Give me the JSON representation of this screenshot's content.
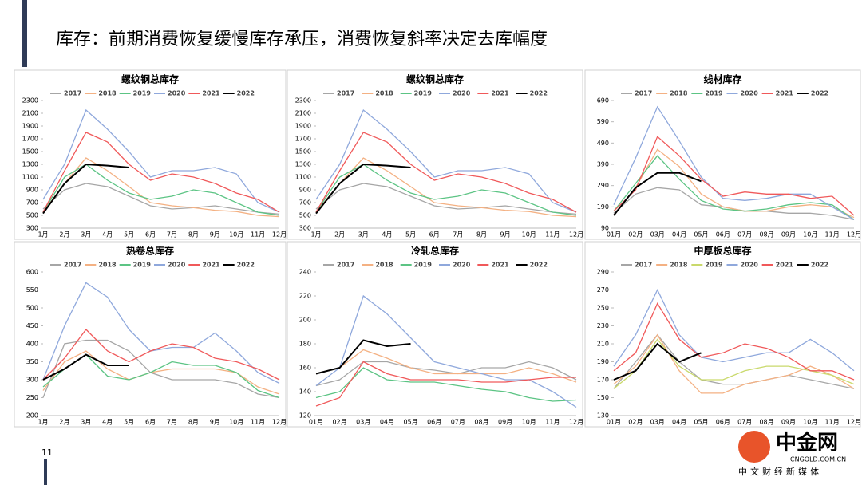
{
  "header": {
    "title": "库存：前期消费恢复缓慢库存承压，消费恢复斜率决定去库幅度"
  },
  "page_number": "11",
  "watermark": {
    "brand": "中金网",
    "site": "CNGOLD.COM.CN",
    "slogan": "中文财经新媒体"
  },
  "chart_data": [
    {
      "type": "line",
      "title": "螺纹钢总库存",
      "categories": [
        "1月",
        "2月",
        "3月",
        "4月",
        "5月",
        "6月",
        "7月",
        "8月",
        "9月",
        "10月",
        "11月",
        "12月"
      ],
      "ylim": [
        300,
        2300
      ],
      "yticks": [
        300,
        500,
        700,
        900,
        1100,
        1300,
        1500,
        1700,
        1900,
        2100,
        2300
      ],
      "series": [
        {
          "name": "2017",
          "color": "#a6a6a6",
          "values": [
            600,
            900,
            1000,
            950,
            800,
            650,
            600,
            620,
            650,
            600,
            550,
            520
          ]
        },
        {
          "name": "2018",
          "color": "#f4b183",
          "values": [
            550,
            1000,
            1400,
            1200,
            950,
            700,
            650,
            620,
            580,
            560,
            500,
            480
          ]
        },
        {
          "name": "2019",
          "color": "#5cc484",
          "values": [
            550,
            1100,
            1300,
            1050,
            850,
            750,
            800,
            900,
            850,
            700,
            550,
            500
          ]
        },
        {
          "name": "2020",
          "color": "#8fa8dc",
          "values": [
            750,
            1300,
            2150,
            1850,
            1500,
            1100,
            1200,
            1200,
            1250,
            1150,
            700,
            550
          ]
        },
        {
          "name": "2021",
          "color": "#f0595a",
          "values": [
            550,
            1200,
            1800,
            1650,
            1300,
            1050,
            1150,
            1100,
            1000,
            850,
            750,
            550
          ]
        },
        {
          "name": "2022",
          "color": "#000000",
          "values": [
            530,
            1000,
            1300,
            1280,
            1250,
            null,
            null,
            null,
            null,
            null,
            null,
            null
          ]
        }
      ]
    },
    {
      "type": "line",
      "title": "螺纹钢总库存",
      "categories": [
        "1月",
        "2月",
        "3月",
        "4月",
        "5月",
        "6月",
        "7月",
        "8月",
        "9月",
        "10月",
        "11月",
        "12月"
      ],
      "ylim": [
        300,
        2300
      ],
      "yticks": [
        300,
        500,
        700,
        900,
        1100,
        1300,
        1500,
        1700,
        1900,
        2100,
        2300
      ],
      "series": [
        {
          "name": "2017",
          "color": "#a6a6a6",
          "values": [
            600,
            900,
            1000,
            950,
            800,
            650,
            600,
            620,
            650,
            600,
            550,
            520
          ]
        },
        {
          "name": "2018",
          "color": "#f4b183",
          "values": [
            550,
            1000,
            1400,
            1200,
            950,
            700,
            650,
            620,
            580,
            560,
            500,
            480
          ]
        },
        {
          "name": "2019",
          "color": "#5cc484",
          "values": [
            550,
            1100,
            1300,
            1050,
            850,
            750,
            800,
            900,
            850,
            700,
            550,
            500
          ]
        },
        {
          "name": "2020",
          "color": "#8fa8dc",
          "values": [
            750,
            1300,
            2150,
            1850,
            1500,
            1100,
            1200,
            1200,
            1250,
            1150,
            700,
            550
          ]
        },
        {
          "name": "2021",
          "color": "#f0595a",
          "values": [
            550,
            1200,
            1800,
            1650,
            1300,
            1050,
            1150,
            1100,
            1000,
            850,
            750,
            550
          ]
        },
        {
          "name": "2022",
          "color": "#000000",
          "values": [
            530,
            1000,
            1300,
            1280,
            1250,
            null,
            null,
            null,
            null,
            null,
            null,
            null
          ]
        }
      ]
    },
    {
      "type": "line",
      "title": "线材库存",
      "categories": [
        "01月",
        "02月",
        "03月",
        "04月",
        "05月",
        "06月",
        "07月",
        "08月",
        "09月",
        "10月",
        "11月",
        "12月"
      ],
      "ylim": [
        90,
        690
      ],
      "yticks": [
        90,
        190,
        290,
        390,
        490,
        590,
        690
      ],
      "series": [
        {
          "name": "2017",
          "color": "#a6a6a6",
          "values": [
            160,
            250,
            280,
            270,
            200,
            190,
            170,
            170,
            160,
            160,
            150,
            130
          ]
        },
        {
          "name": "2018",
          "color": "#f4b183",
          "values": [
            150,
            280,
            460,
            380,
            250,
            190,
            170,
            170,
            190,
            200,
            190,
            140
          ]
        },
        {
          "name": "2019",
          "color": "#5cc484",
          "values": [
            170,
            300,
            430,
            320,
            220,
            180,
            170,
            180,
            200,
            210,
            200,
            130
          ]
        },
        {
          "name": "2020",
          "color": "#8fa8dc",
          "values": [
            200,
            420,
            660,
            500,
            330,
            230,
            220,
            230,
            250,
            250,
            190,
            130
          ]
        },
        {
          "name": "2021",
          "color": "#f0595a",
          "values": [
            170,
            270,
            520,
            430,
            320,
            240,
            260,
            250,
            250,
            230,
            240,
            150
          ]
        },
        {
          "name": "2022",
          "color": "#000000",
          "values": [
            150,
            280,
            350,
            350,
            310,
            null,
            null,
            null,
            null,
            null,
            null,
            null
          ]
        }
      ]
    },
    {
      "type": "line",
      "title": "热卷总库存",
      "categories": [
        "1月",
        "2月",
        "3月",
        "4月",
        "5月",
        "6月",
        "7月",
        "8月",
        "9月",
        "10月",
        "11月",
        "12月"
      ],
      "ylim": [
        200,
        600
      ],
      "yticks": [
        200,
        250,
        300,
        350,
        400,
        450,
        500,
        550,
        600
      ],
      "series": [
        {
          "name": "2017",
          "color": "#a6a6a6",
          "values": [
            250,
            400,
            410,
            410,
            380,
            320,
            300,
            300,
            300,
            290,
            260,
            250
          ]
        },
        {
          "name": "2018",
          "color": "#f4b183",
          "values": [
            270,
            350,
            380,
            330,
            300,
            320,
            330,
            330,
            330,
            320,
            280,
            260
          ]
        },
        {
          "name": "2019",
          "color": "#5cc484",
          "values": [
            280,
            330,
            370,
            310,
            300,
            320,
            350,
            340,
            340,
            320,
            270,
            250
          ]
        },
        {
          "name": "2020",
          "color": "#8fa8dc",
          "values": [
            300,
            450,
            570,
            530,
            440,
            380,
            390,
            390,
            430,
            380,
            320,
            290
          ]
        },
        {
          "name": "2021",
          "color": "#f0595a",
          "values": [
            300,
            360,
            440,
            380,
            350,
            380,
            400,
            390,
            360,
            350,
            330,
            300
          ]
        },
        {
          "name": "2022",
          "color": "#000000",
          "values": [
            300,
            330,
            370,
            340,
            340,
            null,
            null,
            null,
            null,
            null,
            null,
            null
          ]
        }
      ]
    },
    {
      "type": "line",
      "title": "冷轧总库存",
      "categories": [
        "01月",
        "02月",
        "03月",
        "04月",
        "05月",
        "06月",
        "07月",
        "08月",
        "09月",
        "10月",
        "11月",
        "12月"
      ],
      "ylim": [
        120,
        240
      ],
      "yticks": [
        120,
        140,
        160,
        180,
        200,
        220,
        240
      ],
      "series": [
        {
          "name": "2017",
          "color": "#a6a6a6",
          "values": [
            145,
            150,
            165,
            165,
            160,
            158,
            155,
            160,
            160,
            165,
            160,
            150
          ]
        },
        {
          "name": "2018",
          "color": "#f4b183",
          "values": [
            155,
            160,
            175,
            168,
            160,
            155,
            155,
            155,
            155,
            160,
            155,
            148
          ]
        },
        {
          "name": "2019",
          "color": "#5cc484",
          "values": [
            135,
            140,
            160,
            150,
            148,
            148,
            145,
            142,
            140,
            135,
            132,
            133
          ]
        },
        {
          "name": "2020",
          "color": "#8fa8dc",
          "values": [
            145,
            160,
            220,
            205,
            185,
            165,
            160,
            155,
            150,
            150,
            140,
            127
          ]
        },
        {
          "name": "2021",
          "color": "#f0595a",
          "values": [
            128,
            135,
            165,
            155,
            150,
            150,
            150,
            148,
            148,
            150,
            152,
            152
          ]
        },
        {
          "name": "2022",
          "color": "#000000",
          "values": [
            155,
            160,
            183,
            178,
            180,
            null,
            null,
            null,
            null,
            null,
            null,
            null
          ]
        }
      ]
    },
    {
      "type": "line",
      "title": "中厚板总库存",
      "categories": [
        "01月",
        "02月",
        "03月",
        "04月",
        "05月",
        "06月",
        "07月",
        "08月",
        "09月",
        "10月",
        "11月",
        "12月"
      ],
      "ylim": [
        130,
        290
      ],
      "yticks": [
        130,
        150,
        170,
        190,
        210,
        230,
        250,
        270,
        290
      ],
      "series": [
        {
          "name": "2017",
          "color": "#a6a6a6",
          "values": [
            160,
            190,
            220,
            190,
            170,
            165,
            165,
            170,
            175,
            170,
            165,
            160
          ]
        },
        {
          "name": "2018",
          "color": "#f4b183",
          "values": [
            165,
            185,
            220,
            180,
            155,
            155,
            165,
            170,
            175,
            185,
            175,
            160
          ]
        },
        {
          "name": "2019",
          "color": "#c9d96b",
          "values": [
            160,
            180,
            215,
            185,
            170,
            170,
            180,
            185,
            185,
            180,
            175,
            165
          ]
        },
        {
          "name": "2020",
          "color": "#8fa8dc",
          "values": [
            185,
            220,
            270,
            220,
            195,
            190,
            195,
            200,
            200,
            215,
            200,
            180
          ]
        },
        {
          "name": "2021",
          "color": "#f0595a",
          "values": [
            180,
            200,
            255,
            215,
            195,
            200,
            210,
            205,
            195,
            180,
            180,
            170
          ]
        },
        {
          "name": "2022",
          "color": "#000000",
          "values": [
            170,
            180,
            210,
            190,
            200,
            null,
            null,
            null,
            null,
            null,
            null,
            null
          ]
        }
      ]
    }
  ]
}
